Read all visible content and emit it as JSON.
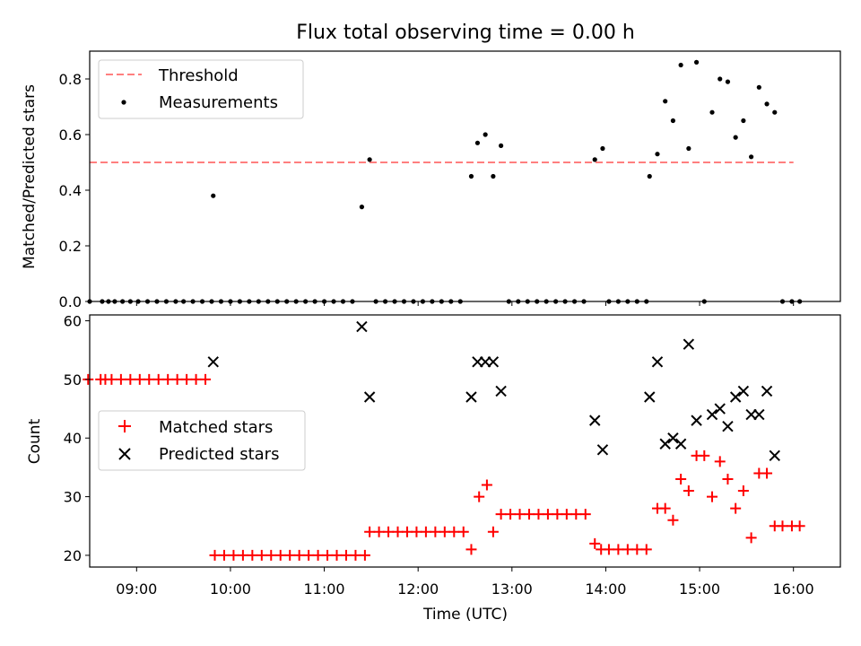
{
  "chart_data": {
    "type": "scatter",
    "title": "Flux total observing time = 0.00 h",
    "x_axis": {
      "label": "Time (UTC)",
      "range": [
        "08:30",
        "16:30"
      ],
      "ticks": [
        "09:00",
        "10:00",
        "11:00",
        "12:00",
        "13:00",
        "14:00",
        "15:00",
        "16:00"
      ]
    },
    "top_panel": {
      "ylabel": "Matched/Predicted stars",
      "ylim": [
        0.0,
        0.9
      ],
      "yticks": [
        "0.0",
        "0.2",
        "0.4",
        "0.6",
        "0.8"
      ],
      "legend_position": "upper left",
      "threshold": {
        "name": "Threshold",
        "value": 0.5,
        "x": [
          "08:30",
          "16:00"
        ],
        "color": "#ff7f7f",
        "style": "dashed"
      },
      "measurements": {
        "name": "Measurements",
        "color": "#000000",
        "points": [
          [
            "08:30",
            0
          ],
          [
            "08:38",
            0
          ],
          [
            "08:42",
            0
          ],
          [
            "08:46",
            0
          ],
          [
            "08:51",
            0
          ],
          [
            "08:56",
            0
          ],
          [
            "09:01",
            0
          ],
          [
            "09:07",
            0
          ],
          [
            "09:13",
            0
          ],
          [
            "09:19",
            0
          ],
          [
            "09:25",
            0
          ],
          [
            "09:30",
            0
          ],
          [
            "09:36",
            0
          ],
          [
            "09:42",
            0
          ],
          [
            "09:48",
            0
          ],
          [
            "09:49",
            0.38
          ],
          [
            "09:54",
            0
          ],
          [
            "10:00",
            0
          ],
          [
            "10:06",
            0
          ],
          [
            "10:12",
            0
          ],
          [
            "10:18",
            0
          ],
          [
            "10:24",
            0
          ],
          [
            "10:30",
            0
          ],
          [
            "10:36",
            0
          ],
          [
            "10:42",
            0
          ],
          [
            "10:48",
            0
          ],
          [
            "10:54",
            0
          ],
          [
            "11:00",
            0
          ],
          [
            "11:06",
            0
          ],
          [
            "11:12",
            0
          ],
          [
            "11:18",
            0
          ],
          [
            "11:24",
            0.34
          ],
          [
            "11:29",
            0.51
          ],
          [
            "11:33",
            0
          ],
          [
            "11:39",
            0
          ],
          [
            "11:45",
            0
          ],
          [
            "11:51",
            0
          ],
          [
            "11:57",
            0
          ],
          [
            "12:03",
            0
          ],
          [
            "12:09",
            0
          ],
          [
            "12:15",
            0
          ],
          [
            "12:21",
            0
          ],
          [
            "12:27",
            0
          ],
          [
            "12:34",
            0.45
          ],
          [
            "12:38",
            0.57
          ],
          [
            "12:43",
            0.6
          ],
          [
            "12:48",
            0.45
          ],
          [
            "12:53",
            0.56
          ],
          [
            "12:58",
            0
          ],
          [
            "13:04",
            0
          ],
          [
            "13:10",
            0
          ],
          [
            "13:16",
            0
          ],
          [
            "13:22",
            0
          ],
          [
            "13:28",
            0
          ],
          [
            "13:34",
            0
          ],
          [
            "13:40",
            0
          ],
          [
            "13:46",
            0
          ],
          [
            "13:53",
            0.51
          ],
          [
            "13:58",
            0.55
          ],
          [
            "14:02",
            0
          ],
          [
            "14:08",
            0
          ],
          [
            "14:14",
            0
          ],
          [
            "14:20",
            0
          ],
          [
            "14:26",
            0
          ],
          [
            "14:28",
            0.45
          ],
          [
            "14:33",
            0.53
          ],
          [
            "14:38",
            0.72
          ],
          [
            "14:43",
            0.65
          ],
          [
            "14:48",
            0.85
          ],
          [
            "14:53",
            0.55
          ],
          [
            "14:58",
            0.86
          ],
          [
            "15:03",
            0
          ],
          [
            "15:08",
            0.68
          ],
          [
            "15:13",
            0.8
          ],
          [
            "15:18",
            0.79
          ],
          [
            "15:23",
            0.59
          ],
          [
            "15:28",
            0.65
          ],
          [
            "15:33",
            0.52
          ],
          [
            "15:38",
            0.77
          ],
          [
            "15:43",
            0.71
          ],
          [
            "15:48",
            0.68
          ],
          [
            "15:53",
            0
          ],
          [
            "15:59",
            0
          ],
          [
            "16:04",
            0
          ]
        ]
      }
    },
    "bottom_panel": {
      "ylabel": "Count",
      "ylim": [
        18,
        61
      ],
      "yticks": [
        "20",
        "30",
        "40",
        "50",
        "60"
      ],
      "legend_position": "center left",
      "series": [
        {
          "name": "Matched stars",
          "color": "#ff0000",
          "marker": "+",
          "points": [
            [
              "08:29",
              50
            ],
            [
              "08:37",
              50
            ],
            [
              "08:40",
              50
            ],
            [
              "08:44",
              50
            ],
            [
              "08:50",
              50
            ],
            [
              "08:56",
              50
            ],
            [
              "09:02",
              50
            ],
            [
              "09:08",
              50
            ],
            [
              "09:14",
              50
            ],
            [
              "09:20",
              50
            ],
            [
              "09:26",
              50
            ],
            [
              "09:32",
              50
            ],
            [
              "09:38",
              50
            ],
            [
              "09:44",
              50
            ],
            [
              "09:50",
              20
            ],
            [
              "09:56",
              20
            ],
            [
              "10:02",
              20
            ],
            [
              "10:08",
              20
            ],
            [
              "10:14",
              20
            ],
            [
              "10:20",
              20
            ],
            [
              "10:26",
              20
            ],
            [
              "10:32",
              20
            ],
            [
              "10:38",
              20
            ],
            [
              "10:44",
              20
            ],
            [
              "10:50",
              20
            ],
            [
              "10:56",
              20
            ],
            [
              "11:02",
              20
            ],
            [
              "11:08",
              20
            ],
            [
              "11:14",
              20
            ],
            [
              "11:20",
              20
            ],
            [
              "11:26",
              20
            ],
            [
              "11:29",
              24
            ],
            [
              "11:35",
              24
            ],
            [
              "11:41",
              24
            ],
            [
              "11:47",
              24
            ],
            [
              "11:53",
              24
            ],
            [
              "11:59",
              24
            ],
            [
              "12:05",
              24
            ],
            [
              "12:11",
              24
            ],
            [
              "12:17",
              24
            ],
            [
              "12:23",
              24
            ],
            [
              "12:29",
              24
            ],
            [
              "12:34",
              21
            ],
            [
              "12:39",
              30
            ],
            [
              "12:44",
              32
            ],
            [
              "12:48",
              24
            ],
            [
              "12:53",
              27
            ],
            [
              "12:59",
              27
            ],
            [
              "13:05",
              27
            ],
            [
              "13:11",
              27
            ],
            [
              "13:17",
              27
            ],
            [
              "13:23",
              27
            ],
            [
              "13:29",
              27
            ],
            [
              "13:35",
              27
            ],
            [
              "13:41",
              27
            ],
            [
              "13:47",
              27
            ],
            [
              "13:53",
              22
            ],
            [
              "13:57",
              21
            ],
            [
              "14:02",
              21
            ],
            [
              "14:08",
              21
            ],
            [
              "14:14",
              21
            ],
            [
              "14:20",
              21
            ],
            [
              "14:26",
              21
            ],
            [
              "14:33",
              28
            ],
            [
              "14:38",
              28
            ],
            [
              "14:43",
              26
            ],
            [
              "14:48",
              33
            ],
            [
              "14:53",
              31
            ],
            [
              "14:58",
              37
            ],
            [
              "15:03",
              37
            ],
            [
              "15:08",
              30
            ],
            [
              "15:13",
              36
            ],
            [
              "15:18",
              33
            ],
            [
              "15:23",
              28
            ],
            [
              "15:28",
              31
            ],
            [
              "15:33",
              23
            ],
            [
              "15:38",
              34
            ],
            [
              "15:43",
              34
            ],
            [
              "15:48",
              25
            ],
            [
              "15:53",
              25
            ],
            [
              "15:59",
              25
            ],
            [
              "16:04",
              25
            ]
          ]
        },
        {
          "name": "Predicted stars",
          "color": "#000000",
          "marker": "x",
          "points": [
            [
              "09:49",
              53
            ],
            [
              "11:24",
              59
            ],
            [
              "11:29",
              47
            ],
            [
              "12:34",
              47
            ],
            [
              "12:38",
              53
            ],
            [
              "12:43",
              53
            ],
            [
              "12:48",
              53
            ],
            [
              "12:53",
              48
            ],
            [
              "13:53",
              43
            ],
            [
              "13:58",
              38
            ],
            [
              "14:28",
              47
            ],
            [
              "14:33",
              53
            ],
            [
              "14:38",
              39
            ],
            [
              "14:43",
              40
            ],
            [
              "14:48",
              39
            ],
            [
              "14:53",
              56
            ],
            [
              "14:58",
              43
            ],
            [
              "15:08",
              44
            ],
            [
              "15:13",
              45
            ],
            [
              "15:18",
              42
            ],
            [
              "15:23",
              47
            ],
            [
              "15:28",
              48
            ],
            [
              "15:33",
              44
            ],
            [
              "15:38",
              44
            ],
            [
              "15:43",
              48
            ],
            [
              "15:48",
              37
            ]
          ]
        }
      ]
    }
  }
}
